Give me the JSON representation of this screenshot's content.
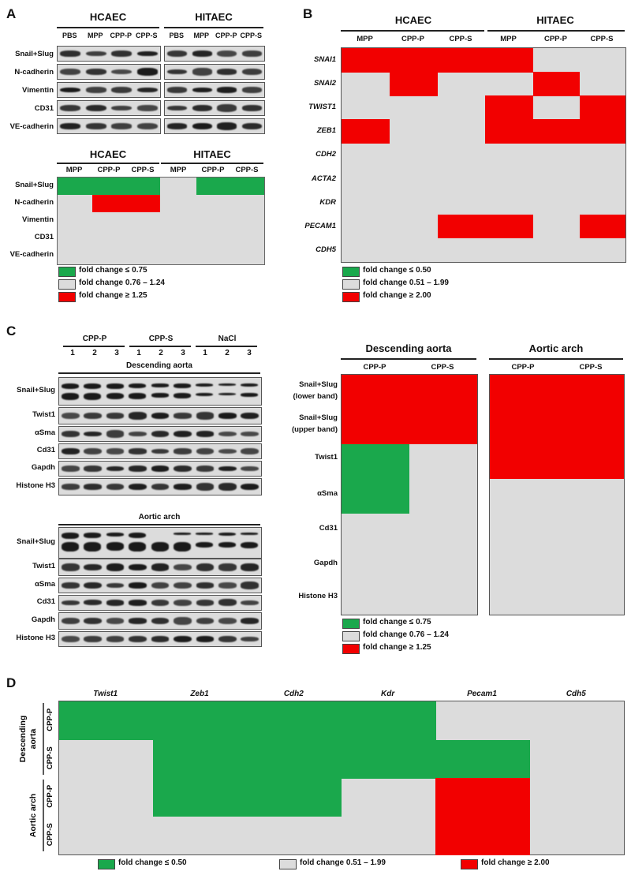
{
  "panels": {
    "a": "A",
    "b": "B",
    "c": "C",
    "d": "D"
  },
  "colors": {
    "green": "#1aa84c",
    "red": "#f20000",
    "grey": "#dcdcdc"
  },
  "panel_a": {
    "blot": {
      "groups": [
        "HCAEC",
        "HITAEC"
      ],
      "lanes": [
        "PBS",
        "MPP",
        "CPP-P",
        "CPP-S"
      ],
      "rows": [
        "Snail+Slug",
        "N-cadherin",
        "Vimentin",
        "CD31",
        "VE-cadherin"
      ]
    },
    "heatmap": {
      "groups": [
        "HCAEC",
        "HITAEC"
      ],
      "cols": [
        "MPP",
        "CPP-P",
        "CPP-S",
        "MPP",
        "CPP-P",
        "CPP-S"
      ],
      "rows": [
        "Snail+Slug",
        "N-cadherin",
        "Vimentin",
        "CD31",
        "VE-cadherin"
      ],
      "cells": [
        [
          "g",
          "g",
          "g",
          "n",
          "g",
          "g"
        ],
        [
          "n",
          "r",
          "r",
          "n",
          "n",
          "n"
        ],
        [
          "n",
          "n",
          "n",
          "n",
          "n",
          "n"
        ],
        [
          "n",
          "n",
          "n",
          "n",
          "n",
          "n"
        ],
        [
          "n",
          "n",
          "n",
          "n",
          "n",
          "n"
        ]
      ]
    },
    "legend": [
      "fold change ≤ 0.75",
      "fold change 0.76 – 1.24",
      "fold change ≥ 1.25"
    ]
  },
  "panel_b": {
    "groups": [
      "HCAEC",
      "HITAEC"
    ],
    "cols": [
      "MPP",
      "CPP-P",
      "CPP-S",
      "MPP",
      "CPP-P",
      "CPP-S"
    ],
    "rows": [
      "SNAI1",
      "SNAI2",
      "TWIST1",
      "ZEB1",
      "CDH2",
      "ACTA2",
      "KDR",
      "PECAM1",
      "CDH5"
    ],
    "cells": [
      [
        "r",
        "r",
        "r",
        "r",
        "n",
        "n"
      ],
      [
        "n",
        "r",
        "n",
        "n",
        "r",
        "n"
      ],
      [
        "n",
        "n",
        "n",
        "r",
        "n",
        "r"
      ],
      [
        "r",
        "n",
        "n",
        "r",
        "r",
        "r"
      ],
      [
        "n",
        "n",
        "n",
        "n",
        "n",
        "n"
      ],
      [
        "n",
        "n",
        "n",
        "n",
        "n",
        "n"
      ],
      [
        "n",
        "n",
        "n",
        "n",
        "n",
        "n"
      ],
      [
        "n",
        "n",
        "r",
        "r",
        "n",
        "r"
      ],
      [
        "n",
        "n",
        "n",
        "n",
        "n",
        "n"
      ]
    ],
    "legend": [
      "fold change ≤ 0.50",
      "fold change 0.51 – 1.99",
      "fold change ≥ 2.00"
    ]
  },
  "panel_c": {
    "groups": [
      "CPP-P",
      "CPP-S",
      "NaCl"
    ],
    "lane_numbers": [
      "1",
      "2",
      "3",
      "1",
      "2",
      "3",
      "1",
      "2",
      "3"
    ],
    "tissue1": "Descending aorta",
    "tissue2": "Aortic arch",
    "blot_rows": [
      "Snail+Slug",
      "Twist1",
      "αSma",
      "Cd31",
      "Gapdh",
      "Histone H3"
    ],
    "heatmap": {
      "titles": [
        "Descending aorta",
        "Aortic arch"
      ],
      "cols": [
        "CPP-P",
        "CPP-S"
      ],
      "rows": [
        "Snail+Slug\n(lower band)",
        "Snail+Slug\n(upper band)",
        "Twist1",
        "αSma",
        "Cd31",
        "Gapdh",
        "Histone H3"
      ],
      "desc_cells": [
        [
          "r",
          "r"
        ],
        [
          "r",
          "r"
        ],
        [
          "g",
          "n"
        ],
        [
          "g",
          "n"
        ],
        [
          "n",
          "n"
        ],
        [
          "n",
          "n"
        ],
        [
          "n",
          "n"
        ]
      ],
      "arch_cells": [
        [
          "r",
          "r"
        ],
        [
          "r",
          "r"
        ],
        [
          "r",
          "r"
        ],
        [
          "n",
          "n"
        ],
        [
          "n",
          "n"
        ],
        [
          "n",
          "n"
        ],
        [
          "n",
          "n"
        ]
      ]
    },
    "legend": [
      "fold change ≤ 0.75",
      "fold change 0.76 – 1.24",
      "fold change ≥ 1.25"
    ]
  },
  "panel_d": {
    "cols": [
      "Twist1",
      "Zeb1",
      "Cdh2",
      "Kdr",
      "Pecam1",
      "Cdh5"
    ],
    "tissues": [
      "Descending\naorta",
      "Aortic arch"
    ],
    "treatments": [
      "CPP-P",
      "CPP-S",
      "CPP-P",
      "CPP-S"
    ],
    "cells": [
      [
        "g",
        "g",
        "g",
        "g",
        "n",
        "n"
      ],
      [
        "n",
        "g",
        "g",
        "g",
        "g",
        "n"
      ],
      [
        "n",
        "g",
        "g",
        "n",
        "r",
        "n"
      ],
      [
        "n",
        "n",
        "n",
        "n",
        "r",
        "n"
      ]
    ],
    "legend": [
      "fold change ≤ 0.50",
      "fold change 0.51 – 1.99",
      "fold change ≥ 2.00"
    ]
  }
}
